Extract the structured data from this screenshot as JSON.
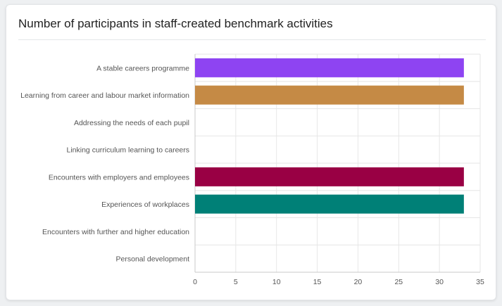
{
  "card": {
    "title": "Number of participants in staff-created benchmark activities"
  },
  "chart_data": {
    "type": "bar",
    "orientation": "horizontal",
    "categories": [
      "A stable careers programme",
      "Learning from career and labour market information",
      "Addressing the needs of each pupil",
      "Linking curriculum learning to careers",
      "Encounters with employers and employees",
      "Experiences of workplaces",
      "Encounters with further and higher education",
      "Personal development"
    ],
    "values": [
      33,
      33,
      0,
      0,
      33,
      33,
      0,
      0
    ],
    "colors": [
      "#8e44f2",
      "#c58a45",
      "#cccccc",
      "#cccccc",
      "#990044",
      "#008077",
      "#cccccc",
      "#cccccc"
    ],
    "xlim": [
      0,
      35
    ],
    "xticks": [
      "0",
      "5",
      "10",
      "15",
      "20",
      "25",
      "30",
      "35"
    ],
    "grid": true,
    "title": "",
    "xlabel": "",
    "ylabel": ""
  }
}
